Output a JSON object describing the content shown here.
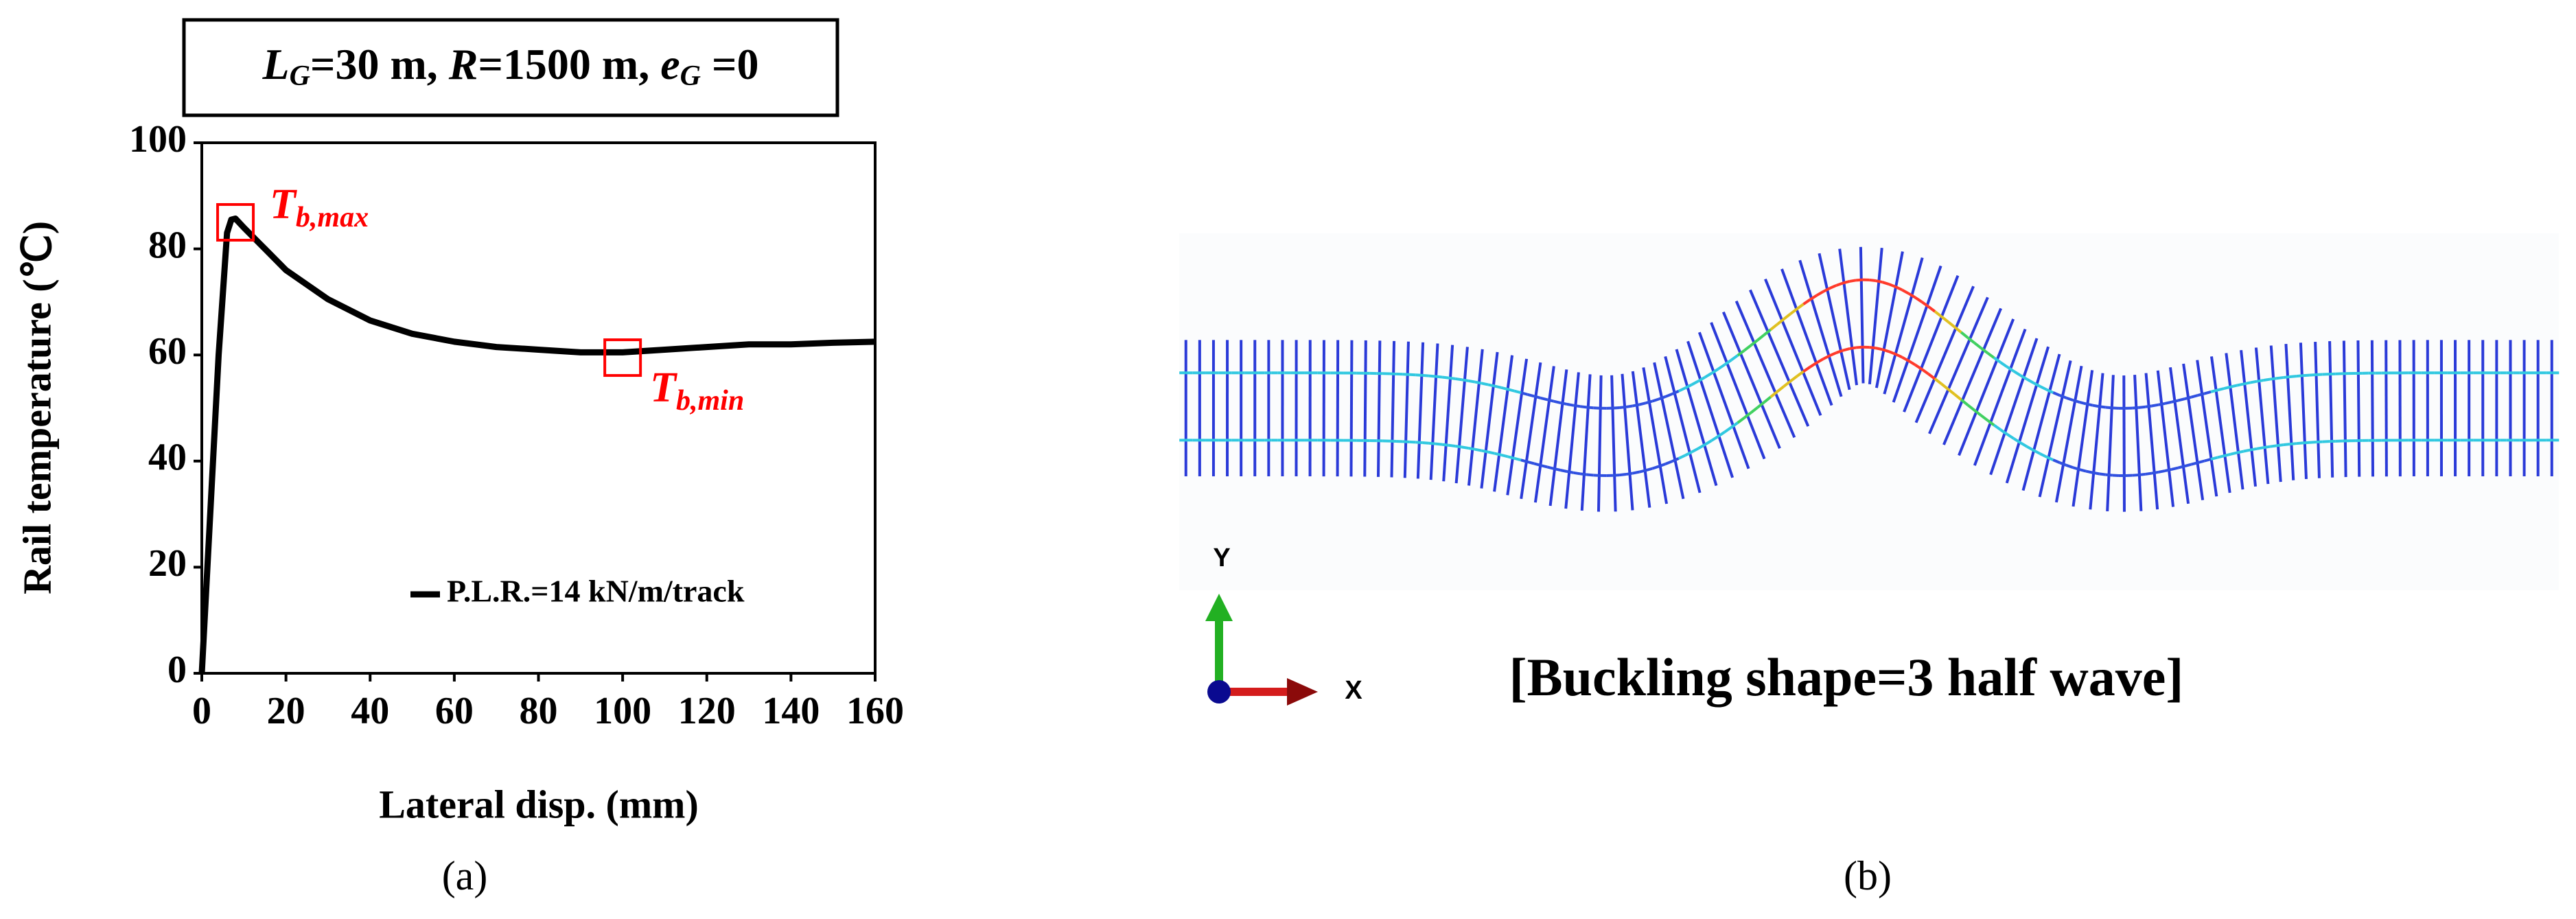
{
  "chart_data": {
    "type": "line",
    "title": [
      "L",
      "G",
      "=30 m, ",
      "R",
      "=1500 m, ",
      "e",
      "G",
      " =0"
    ],
    "xlabel": "Lateral disp. (mm)",
    "ylabel": "Rail temperature (℃)",
    "xlim": [
      0,
      160
    ],
    "xticks": [
      0,
      20,
      40,
      60,
      80,
      100,
      120,
      140,
      160
    ],
    "ylim": [
      0,
      100
    ],
    "yticks": [
      0,
      20,
      40,
      60,
      80,
      100
    ],
    "x": [
      0,
      2,
      4,
      6,
      7,
      8,
      10,
      15,
      20,
      30,
      40,
      50,
      60,
      70,
      80,
      90,
      100,
      110,
      120,
      130,
      140,
      150,
      160
    ],
    "series": [
      {
        "name": "P.L.R.=14 kN/m/track",
        "color": "#000000",
        "values": [
          0,
          30,
          60,
          83,
          85.5,
          85.7,
          84,
          80,
          76,
          70.5,
          66.5,
          64,
          62.5,
          61.5,
          61,
          60.5,
          60.5,
          61,
          61.5,
          62,
          62,
          62.3,
          62.5
        ]
      }
    ],
    "annotations": [
      {
        "text": [
          "T",
          "b,max"
        ],
        "x": 8,
        "y": 85,
        "color": "#ff0000"
      },
      {
        "text": [
          "T",
          "b,min"
        ],
        "x": 100,
        "y": 59.5,
        "color": "#ff0000"
      }
    ],
    "caption": "(a)"
  },
  "panel_b": {
    "axis_y": "Y",
    "axis_x": "X",
    "label": "[Buckling shape=3 half wave]",
    "caption": "(b)"
  }
}
